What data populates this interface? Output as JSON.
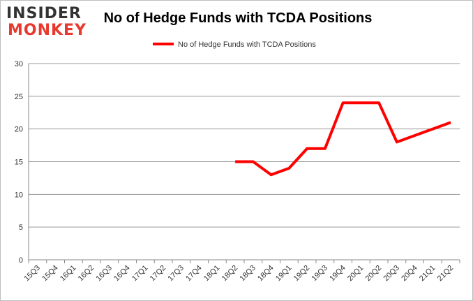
{
  "logo": {
    "line1": "INSIDER",
    "line2": "MONKEY"
  },
  "chart_data": {
    "type": "line",
    "title": "No of Hedge Funds with TCDA Positions",
    "xlabel": "",
    "ylabel": "",
    "categories": [
      "15Q3",
      "15Q4",
      "16Q1",
      "16Q2",
      "16Q3",
      "16Q4",
      "17Q1",
      "17Q2",
      "17Q3",
      "17Q4",
      "18Q1",
      "18Q2",
      "18Q3",
      "18Q4",
      "19Q1",
      "19Q2",
      "19Q3",
      "19Q4",
      "20Q1",
      "20Q2",
      "20Q3",
      "20Q4",
      "21Q1",
      "21Q2"
    ],
    "series": [
      {
        "name": "No of Hedge Funds with TCDA Positions",
        "color": "#ff0000",
        "values": [
          null,
          null,
          null,
          null,
          null,
          null,
          null,
          null,
          null,
          null,
          null,
          15,
          15,
          13,
          14,
          17,
          17,
          24,
          24,
          24,
          18,
          19,
          20,
          21
        ]
      }
    ],
    "ylim": [
      0,
      30
    ],
    "yticks": [
      0,
      5,
      10,
      15,
      20,
      25,
      30
    ],
    "grid": true,
    "legend": "top-center"
  }
}
